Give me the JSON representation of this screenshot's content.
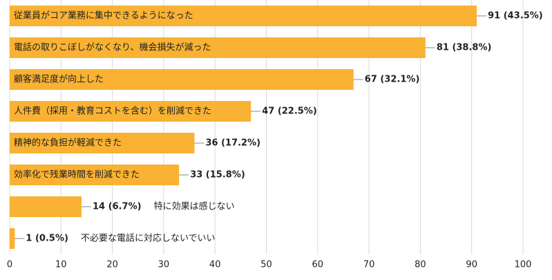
{
  "chart_data": {
    "type": "bar",
    "orientation": "horizontal",
    "categories": [
      "従業員がコア業務に集中できるようになった",
      "電話の取りこぼしがなくなり、機会損失が減った",
      "顧客満足度が向上した",
      "人件費（採用・教育コストを含む）を削減できた",
      "精神的な負担が軽減できた",
      "効率化で残業時間を削減できた",
      "特に効果は感じない",
      "不必要な電話に対応しないでいい"
    ],
    "values": [
      91,
      81,
      67,
      47,
      36,
      33,
      14,
      1
    ],
    "value_labels": [
      "91 (43.5%)",
      "81 (38.8%)",
      "67 (32.1%)",
      "47 (22.5%)",
      "36 (17.2%)",
      "33 (15.8%)",
      "14 (6.7%)",
      "1 (0.5%)"
    ],
    "color": "#f9b233",
    "xlim": [
      0,
      100
    ],
    "xticks": [
      0,
      10,
      20,
      30,
      40,
      50,
      60,
      70,
      80,
      90,
      100
    ],
    "grid": true
  }
}
